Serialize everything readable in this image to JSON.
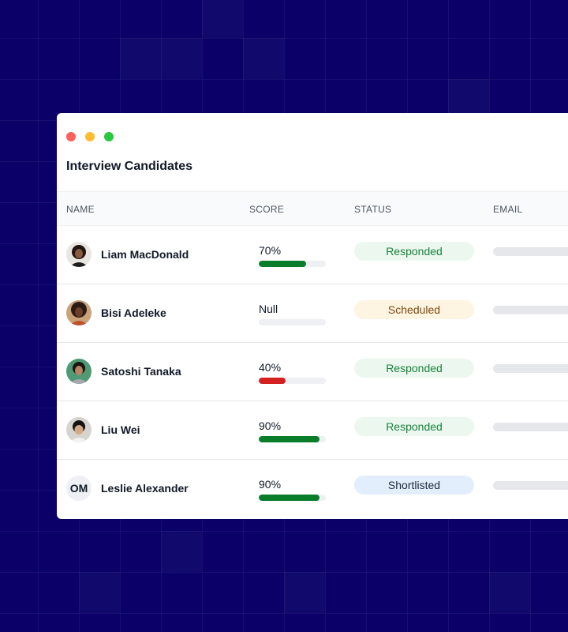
{
  "window": {
    "title": "Interview Candidates"
  },
  "table": {
    "columns": [
      "NAME",
      "SCORE",
      "STATUS",
      "EMAIL"
    ],
    "rows": [
      {
        "name": "Liam MacDonald",
        "avatar": "photo",
        "score_label": "70%",
        "score_fraction": 0.7,
        "score_color": "#0a7d2b",
        "status": "Responded",
        "status_bg": "#ecf8ef",
        "status_color": "#16833a"
      },
      {
        "name": "Bisi Adeleke",
        "avatar": "photo",
        "score_label": "Null",
        "score_fraction": 0,
        "score_color": "#0a7d2b",
        "status": "Scheduled",
        "status_bg": "#fef4e2",
        "status_color": "#7a4a0e"
      },
      {
        "name": "Satoshi Tanaka",
        "avatar": "photo",
        "score_label": "40%",
        "score_fraction": 0.4,
        "score_color": "#d42020",
        "status": "Responded",
        "status_bg": "#ecf8ef",
        "status_color": "#16833a"
      },
      {
        "name": "Liu Wei",
        "avatar": "photo",
        "score_label": "90%",
        "score_fraction": 0.9,
        "score_color": "#0a7d2b",
        "status": "Responded",
        "status_bg": "#ecf8ef",
        "status_color": "#16833a"
      },
      {
        "name": "Leslie Alexander",
        "avatar": "initials",
        "avatar_initials": "OM",
        "score_label": "90%",
        "score_fraction": 0.9,
        "score_color": "#0a7d2b",
        "status": "Shortlisted",
        "status_bg": "#e2eefb",
        "status_color": "#1f2937"
      }
    ]
  },
  "colors": {
    "background": "#0a0068",
    "window": "#ffffff",
    "email_placeholder": "#e5e7eb"
  }
}
